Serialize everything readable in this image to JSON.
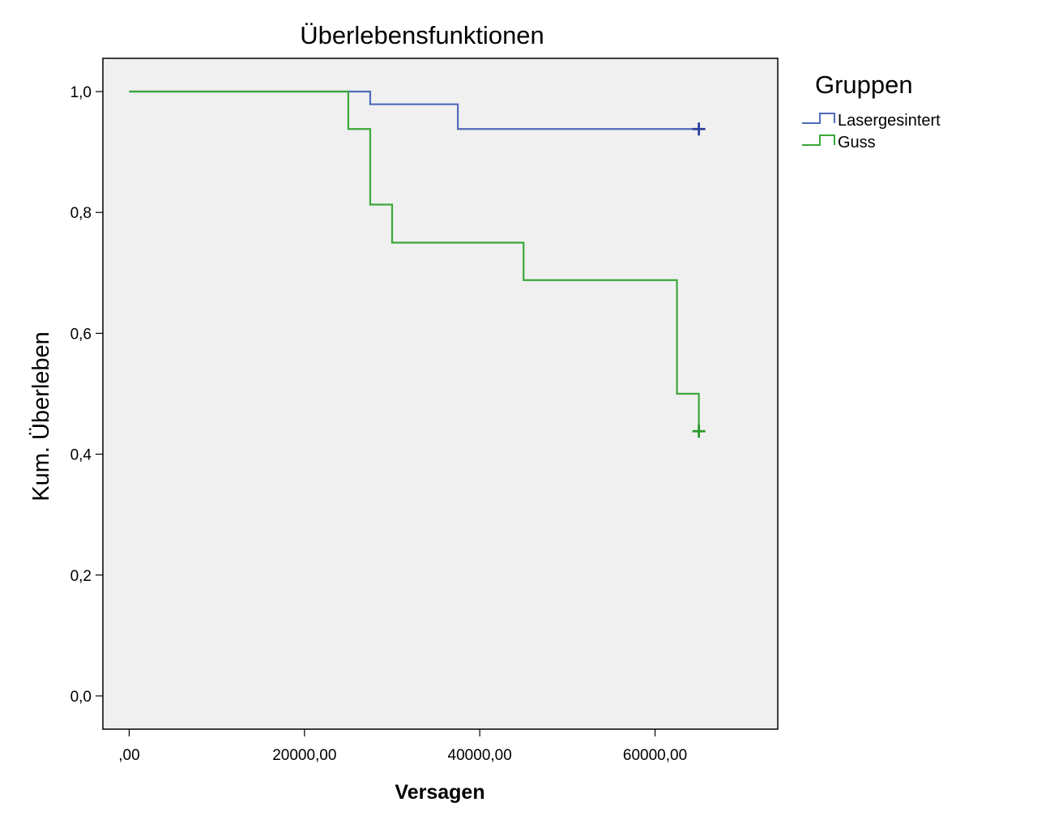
{
  "chart_data": {
    "type": "line",
    "step": true,
    "title": "Überlebensfunktionen",
    "xlabel": "Versagen",
    "ylabel": "Kum. Überleben",
    "xlim": [
      -3000,
      74000
    ],
    "ylim": [
      -0.055,
      1.055
    ],
    "xticks": [
      0,
      20000,
      40000,
      60000
    ],
    "xtick_labels": [
      ",00",
      "20000,00",
      "40000,00",
      "60000,00"
    ],
    "yticks": [
      0,
      0.2,
      0.4,
      0.6,
      0.8,
      1.0
    ],
    "ytick_labels": [
      "0,0",
      "0,2",
      "0,4",
      "0,6",
      "0,8",
      "1,0"
    ],
    "grid": false,
    "legend": {
      "title": "Gruppen",
      "placement": "right"
    },
    "background": "#f0f0f0",
    "series": [
      {
        "name": "Lasergesintert",
        "color": "#4f6bb8",
        "censor_color": "#2c3f9a",
        "x": [
          0,
          27500,
          37500,
          65000
        ],
        "y": [
          1.0,
          0.979,
          0.938,
          0.938
        ],
        "censored": [
          [
            65000,
            0.938
          ]
        ]
      },
      {
        "name": "Guss",
        "color": "#3aa83a",
        "censor_color": "#2a9a2a",
        "x": [
          0,
          25000,
          27500,
          30000,
          45000,
          62500,
          65000
        ],
        "y": [
          1.0,
          0.938,
          0.813,
          0.75,
          0.688,
          0.5,
          0.438
        ],
        "censored": [
          [
            65000,
            0.438
          ]
        ]
      }
    ]
  }
}
